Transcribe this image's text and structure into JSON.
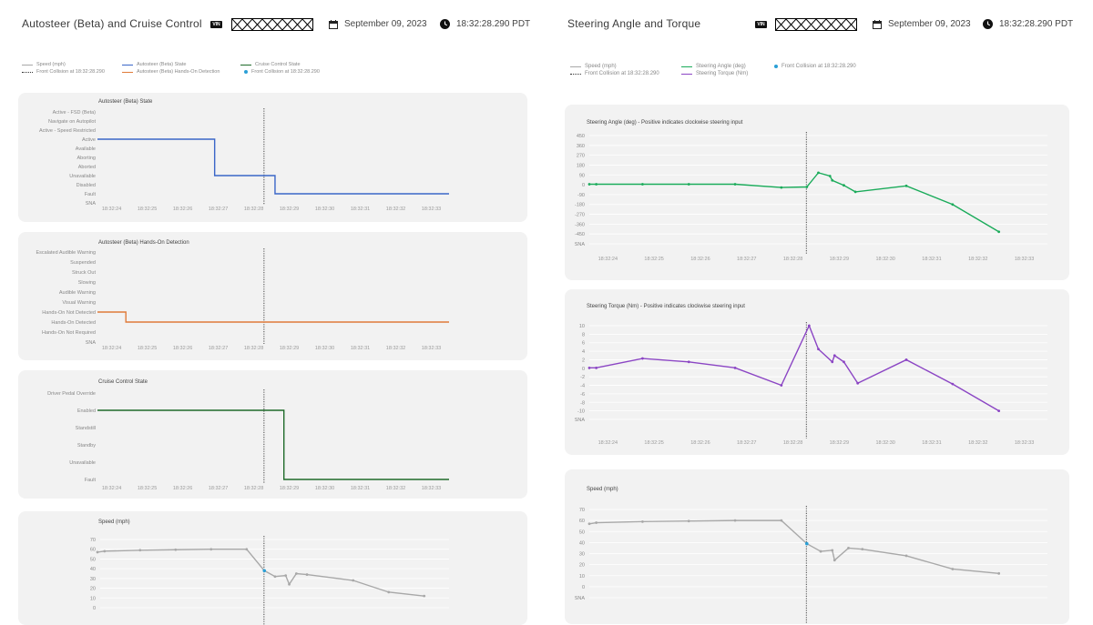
{
  "left": {
    "title": "Autosteer (Beta) and Cruise Control",
    "vin_badge": "VIN",
    "date": "September 09, 2023",
    "time": "18:32:28.290 PDT",
    "legend": {
      "speed": "Speed (mph)",
      "autosteer_state": "Autosteer (Beta) State",
      "cruise_state": "Cruise Control State",
      "front_collision": "Front Collision at 18:32:28.290",
      "hands_on": "Autosteer (Beta) Hands-On Detection",
      "front_collision_dot": "Front Collision at 18:32:28.290"
    }
  },
  "right": {
    "title": "Steering Angle and Torque",
    "vin_badge": "VIN",
    "date": "September 09, 2023",
    "time": "18:32:28.290 PDT",
    "legend": {
      "speed": "Speed (mph)",
      "front_collision": "Front Collision at 18:32:28.290",
      "angle": "Steering Angle (deg)",
      "torque": "Steering Torque (Nm)",
      "front_collision_dot": "Front Collision at 18:32:28.290"
    }
  },
  "colors": {
    "autosteer": "#3a66c8",
    "hands_on": "#e07b39",
    "cruise": "#1f6b2a",
    "speed": "#a8a8a8",
    "angle": "#1aab5a",
    "torque": "#8b45c4",
    "collision_dot": "#2a9fd6"
  },
  "chart_data": [
    {
      "type": "line",
      "title": "Autosteer (Beta) State",
      "x_ticks": [
        "18:32:24",
        "18:32:25",
        "18:32:26",
        "18:32:27",
        "18:32:28",
        "18:32:29",
        "18:32:30",
        "18:32:31",
        "18:32:32",
        "18:32:33"
      ],
      "categories": [
        "Active - FSD (Beta)",
        "Navigate on Autopilot",
        "Active - Speed Restricted",
        "Active",
        "Available",
        "Aborting",
        "Aborted",
        "Unavailable",
        "Disabled",
        "Fault",
        "SNA"
      ],
      "series": [
        {
          "points": [
            [
              23.6,
              "Active"
            ],
            [
              26.9,
              "Active"
            ],
            [
              26.9,
              "Unavailable"
            ],
            [
              28.6,
              "Unavailable"
            ],
            [
              28.6,
              "Fault"
            ],
            [
              33.5,
              "Fault"
            ]
          ]
        }
      ],
      "collision_x": 28.29
    },
    {
      "type": "line",
      "title": "Autosteer (Beta) Hands-On Detection",
      "x_ticks": [
        "18:32:24",
        "18:32:25",
        "18:32:26",
        "18:32:27",
        "18:32:28",
        "18:32:29",
        "18:32:30",
        "18:32:31",
        "18:32:32",
        "18:32:33"
      ],
      "categories": [
        "Escalated Audible Warning",
        "Suspended",
        "Struck Out",
        "Slowing",
        "Audible Warning",
        "Visual Warning",
        "Hands-On Not Detected",
        "Hands-On Detected",
        "Hands-On Not Required",
        "SNA"
      ],
      "series": [
        {
          "points": [
            [
              23.6,
              "Hands-On Not Detected"
            ],
            [
              24.4,
              "Hands-On Not Detected"
            ],
            [
              24.4,
              "Hands-On Detected"
            ],
            [
              33.5,
              "Hands-On Detected"
            ]
          ]
        }
      ],
      "collision_x": 28.29
    },
    {
      "type": "line",
      "title": "Cruise Control State",
      "x_ticks": [
        "18:32:24",
        "18:32:25",
        "18:32:26",
        "18:32:27",
        "18:32:28",
        "18:32:29",
        "18:32:30",
        "18:32:31",
        "18:32:32",
        "18:32:33"
      ],
      "categories": [
        "Driver Pedal Override",
        "Enabled",
        "Standstill",
        "Standby",
        "Unavailable",
        "Fault"
      ],
      "series": [
        {
          "points": [
            [
              23.6,
              "Enabled"
            ],
            [
              28.85,
              "Enabled"
            ],
            [
              28.85,
              "Fault"
            ],
            [
              33.5,
              "Fault"
            ]
          ]
        }
      ],
      "collision_x": 28.29
    },
    {
      "type": "line",
      "title": "Speed (mph)",
      "y_ticks": [
        "70",
        "60",
        "50",
        "40",
        "30",
        "20",
        "10",
        "0"
      ],
      "ylim": [
        0,
        70
      ],
      "series": [
        {
          "points": [
            [
              23.6,
              57
            ],
            [
              23.8,
              58
            ],
            [
              24.8,
              59
            ],
            [
              25.8,
              59.5
            ],
            [
              26.8,
              60
            ],
            [
              27.8,
              60
            ],
            [
              28.3,
              38
            ],
            [
              28.6,
              32
            ],
            [
              28.9,
              33
            ],
            [
              29.0,
              24
            ],
            [
              29.2,
              35
            ],
            [
              29.5,
              34
            ],
            [
              30.8,
              28
            ],
            [
              31.8,
              16
            ],
            [
              32.8,
              12
            ]
          ]
        }
      ],
      "collision_x": 28.29
    },
    {
      "type": "line",
      "title": "Steering Angle (deg) - Positive indicates clockwise steering input",
      "x_ticks": [
        "18:32:24",
        "18:32:25",
        "18:32:26",
        "18:32:27",
        "18:32:28",
        "18:32:29",
        "18:32:30",
        "18:32:31",
        "18:32:32",
        "18:32:33"
      ],
      "y_ticks": [
        "450",
        "360",
        "270",
        "180",
        "90",
        "0",
        "-90",
        "-180",
        "-270",
        "-360",
        "-450",
        "SNA"
      ],
      "ylim": [
        -450,
        450
      ],
      "series": [
        {
          "points": [
            [
              23.6,
              5
            ],
            [
              23.75,
              5
            ],
            [
              24.75,
              5
            ],
            [
              25.75,
              5
            ],
            [
              26.75,
              5
            ],
            [
              27.75,
              -25
            ],
            [
              28.3,
              -20
            ],
            [
              28.55,
              110
            ],
            [
              28.8,
              80
            ],
            [
              28.85,
              40
            ],
            [
              29.1,
              -5
            ],
            [
              29.35,
              -65
            ],
            [
              30.45,
              -10
            ],
            [
              31.45,
              -180
            ],
            [
              32.45,
              -430
            ]
          ]
        }
      ],
      "collision_x": 28.29
    },
    {
      "type": "line",
      "title": "Steering Torque (Nm) - Positive indicates clockwise steering input",
      "x_ticks": [
        "18:32:24",
        "18:32:25",
        "18:32:26",
        "18:32:27",
        "18:32:28",
        "18:32:29",
        "18:32:30",
        "18:32:31",
        "18:32:32",
        "18:32:33"
      ],
      "y_ticks": [
        "10",
        "8",
        "6",
        "4",
        "2",
        "0",
        "-2",
        "-4",
        "-6",
        "-8",
        "-10",
        "SNA"
      ],
      "ylim": [
        -10,
        10
      ],
      "series": [
        {
          "points": [
            [
              23.6,
              0.1
            ],
            [
              23.75,
              0.1
            ],
            [
              24.75,
              2.3
            ],
            [
              25.75,
              1.5
            ],
            [
              26.75,
              0.1
            ],
            [
              27.75,
              -4
            ],
            [
              28.35,
              10
            ],
            [
              28.55,
              4.5
            ],
            [
              28.85,
              1.5
            ],
            [
              28.9,
              3
            ],
            [
              29.1,
              1.5
            ],
            [
              29.4,
              -3.5
            ],
            [
              30.45,
              2
            ],
            [
              31.45,
              -3.7
            ],
            [
              32.45,
              -10
            ]
          ]
        }
      ],
      "collision_x": 28.29
    },
    {
      "type": "line",
      "title": "Speed (mph)",
      "y_ticks": [
        "70",
        "60",
        "50",
        "40",
        "30",
        "20",
        "10",
        "0",
        "SNA"
      ],
      "ylim": [
        0,
        70
      ],
      "series": [
        {
          "points": [
            [
              23.6,
              57
            ],
            [
              23.75,
              58
            ],
            [
              24.75,
              59
            ],
            [
              25.75,
              59.5
            ],
            [
              26.75,
              60
            ],
            [
              27.75,
              60
            ],
            [
              28.3,
              39
            ],
            [
              28.6,
              32
            ],
            [
              28.85,
              33
            ],
            [
              28.9,
              24
            ],
            [
              29.2,
              35
            ],
            [
              29.5,
              34
            ],
            [
              30.45,
              28
            ],
            [
              31.45,
              16
            ],
            [
              32.45,
              12
            ]
          ]
        }
      ],
      "collision_x": 28.29
    }
  ]
}
